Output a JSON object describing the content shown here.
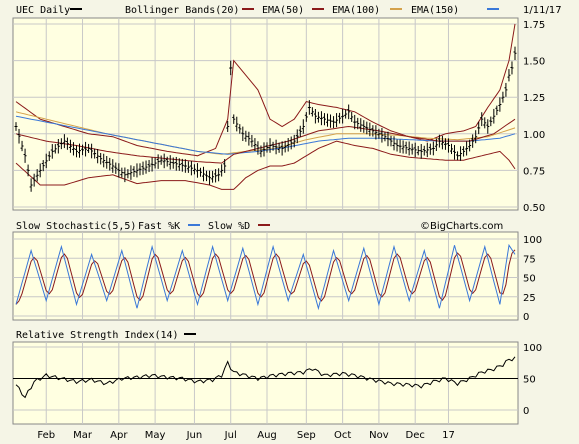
{
  "chart_data": [
    {
      "type": "line",
      "panel": "price",
      "ylim": [
        0.5,
        1.75
      ],
      "yticks": [
        "0.50",
        "0.75",
        "1.00",
        "1.25",
        "1.50",
        "1.75"
      ],
      "yticks_values": [
        0.5,
        0.75,
        1.0,
        1.25,
        1.5,
        1.75
      ],
      "date_label": "1/11/17",
      "legend": [
        {
          "label": "UEC Daily",
          "color": "#000000"
        },
        {
          "label": "Bollinger Bands(20)",
          "color": "#8b1a1a"
        },
        {
          "label": "EMA(50)",
          "color": "#8b1a1a"
        },
        {
          "label": "EMA(100)",
          "color": "#d4a24a"
        },
        {
          "label": "EMA(150)",
          "color": "#3a78d8"
        }
      ],
      "anchors": {
        "close": [
          [
            0,
            1.05
          ],
          [
            3,
            0.85
          ],
          [
            5,
            0.65
          ],
          [
            8,
            0.75
          ],
          [
            12,
            0.88
          ],
          [
            16,
            0.95
          ],
          [
            20,
            0.88
          ],
          [
            24,
            0.9
          ],
          [
            28,
            0.83
          ],
          [
            32,
            0.78
          ],
          [
            36,
            0.72
          ],
          [
            40,
            0.75
          ],
          [
            44,
            0.78
          ],
          [
            48,
            0.82
          ],
          [
            52,
            0.8
          ],
          [
            56,
            0.78
          ],
          [
            60,
            0.75
          ],
          [
            64,
            0.7
          ],
          [
            67,
            0.72
          ],
          [
            69,
            0.78
          ],
          [
            70,
            1.05
          ],
          [
            71,
            1.45
          ],
          [
            72,
            1.1
          ],
          [
            75,
            1.0
          ],
          [
            78,
            0.95
          ],
          [
            81,
            0.88
          ],
          [
            84,
            0.92
          ],
          [
            88,
            0.9
          ],
          [
            92,
            0.95
          ],
          [
            95,
            1.05
          ],
          [
            97,
            1.18
          ],
          [
            99,
            1.12
          ],
          [
            102,
            1.1
          ],
          [
            105,
            1.08
          ],
          [
            108,
            1.12
          ],
          [
            110,
            1.15
          ],
          [
            112,
            1.08
          ],
          [
            115,
            1.05
          ],
          [
            118,
            1.02
          ],
          [
            122,
            0.98
          ],
          [
            126,
            0.92
          ],
          [
            130,
            0.9
          ],
          [
            134,
            0.88
          ],
          [
            138,
            0.9
          ],
          [
            140,
            0.95
          ],
          [
            143,
            0.92
          ],
          [
            146,
            0.85
          ],
          [
            148,
            0.88
          ],
          [
            150,
            0.92
          ],
          [
            152,
            0.98
          ],
          [
            154,
            1.1
          ],
          [
            156,
            1.05
          ],
          [
            158,
            1.12
          ],
          [
            160,
            1.2
          ],
          [
            162,
            1.3
          ],
          [
            163,
            1.4
          ],
          [
            164,
            1.45
          ],
          [
            165,
            1.55
          ]
        ],
        "bb_upper": [
          [
            0,
            1.22
          ],
          [
            8,
            1.1
          ],
          [
            16,
            1.05
          ],
          [
            24,
            1.0
          ],
          [
            32,
            0.98
          ],
          [
            40,
            0.92
          ],
          [
            50,
            0.88
          ],
          [
            60,
            0.85
          ],
          [
            66,
            0.9
          ],
          [
            70,
            1.1
          ],
          [
            72,
            1.5
          ],
          [
            76,
            1.4
          ],
          [
            80,
            1.3
          ],
          [
            84,
            1.1
          ],
          [
            88,
            1.05
          ],
          [
            92,
            1.1
          ],
          [
            96,
            1.22
          ],
          [
            100,
            1.2
          ],
          [
            106,
            1.18
          ],
          [
            112,
            1.15
          ],
          [
            118,
            1.08
          ],
          [
            124,
            1.02
          ],
          [
            130,
            0.98
          ],
          [
            136,
            0.95
          ],
          [
            142,
            1.0
          ],
          [
            148,
            1.02
          ],
          [
            152,
            1.05
          ],
          [
            156,
            1.18
          ],
          [
            160,
            1.3
          ],
          [
            163,
            1.5
          ],
          [
            165,
            1.75
          ]
        ],
        "bb_lower": [
          [
            0,
            0.8
          ],
          [
            8,
            0.65
          ],
          [
            16,
            0.65
          ],
          [
            24,
            0.7
          ],
          [
            32,
            0.72
          ],
          [
            40,
            0.66
          ],
          [
            48,
            0.68
          ],
          [
            56,
            0.68
          ],
          [
            64,
            0.65
          ],
          [
            68,
            0.62
          ],
          [
            72,
            0.62
          ],
          [
            76,
            0.7
          ],
          [
            80,
            0.75
          ],
          [
            84,
            0.78
          ],
          [
            88,
            0.78
          ],
          [
            92,
            0.8
          ],
          [
            96,
            0.85
          ],
          [
            100,
            0.9
          ],
          [
            106,
            0.95
          ],
          [
            112,
            0.92
          ],
          [
            118,
            0.9
          ],
          [
            124,
            0.86
          ],
          [
            130,
            0.84
          ],
          [
            136,
            0.83
          ],
          [
            142,
            0.82
          ],
          [
            148,
            0.82
          ],
          [
            152,
            0.84
          ],
          [
            156,
            0.86
          ],
          [
            160,
            0.88
          ],
          [
            163,
            0.82
          ],
          [
            165,
            0.76
          ]
        ],
        "ema50": [
          [
            0,
            1.0
          ],
          [
            10,
            0.95
          ],
          [
            20,
            0.92
          ],
          [
            30,
            0.88
          ],
          [
            40,
            0.85
          ],
          [
            50,
            0.83
          ],
          [
            60,
            0.81
          ],
          [
            68,
            0.8
          ],
          [
            72,
            0.86
          ],
          [
            80,
            0.9
          ],
          [
            90,
            0.95
          ],
          [
            100,
            1.02
          ],
          [
            110,
            1.05
          ],
          [
            120,
            1.02
          ],
          [
            130,
            0.98
          ],
          [
            140,
            0.95
          ],
          [
            150,
            0.95
          ],
          [
            158,
            1.0
          ],
          [
            165,
            1.1
          ]
        ],
        "ema100": [
          [
            0,
            1.15
          ],
          [
            10,
            1.1
          ],
          [
            20,
            1.05
          ],
          [
            30,
            1.0
          ],
          [
            40,
            0.96
          ],
          [
            50,
            0.92
          ],
          [
            60,
            0.88
          ],
          [
            68,
            0.86
          ],
          [
            76,
            0.88
          ],
          [
            86,
            0.9
          ],
          [
            96,
            0.96
          ],
          [
            106,
            1.0
          ],
          [
            116,
            1.0
          ],
          [
            126,
            0.99
          ],
          [
            136,
            0.97
          ],
          [
            146,
            0.96
          ],
          [
            156,
            0.98
          ],
          [
            165,
            1.04
          ]
        ],
        "ema150": [
          [
            0,
            1.12
          ],
          [
            10,
            1.08
          ],
          [
            20,
            1.04
          ],
          [
            30,
            1.0
          ],
          [
            40,
            0.96
          ],
          [
            50,
            0.92
          ],
          [
            60,
            0.88
          ],
          [
            70,
            0.86
          ],
          [
            80,
            0.88
          ],
          [
            90,
            0.91
          ],
          [
            100,
            0.95
          ],
          [
            110,
            0.97
          ],
          [
            120,
            0.97
          ],
          [
            130,
            0.96
          ],
          [
            140,
            0.95
          ],
          [
            150,
            0.95
          ],
          [
            160,
            0.97
          ],
          [
            165,
            1.0
          ]
        ]
      }
    },
    {
      "type": "line",
      "panel": "stochastic",
      "title": "Slow Stochastic(5,5)",
      "legend": [
        {
          "label": "Fast %K",
          "color": "#3a78d8"
        },
        {
          "label": "Slow %D",
          "color": "#8b1a1a"
        }
      ],
      "ylim": [
        0,
        100
      ],
      "yticks": [
        "0",
        "25",
        "50",
        "75",
        "100"
      ],
      "yticks_values": [
        0,
        25,
        50,
        75,
        100
      ],
      "watermark": "©BigCharts.com",
      "cycles": [
        [
          0,
          15
        ],
        [
          5,
          85
        ],
        [
          10,
          20
        ],
        [
          15,
          90
        ],
        [
          20,
          15
        ],
        [
          25,
          80
        ],
        [
          30,
          20
        ],
        [
          35,
          85
        ],
        [
          40,
          10
        ],
        [
          45,
          90
        ],
        [
          50,
          20
        ],
        [
          55,
          85
        ],
        [
          60,
          15
        ],
        [
          65,
          90
        ],
        [
          70,
          20
        ],
        [
          75,
          88
        ],
        [
          80,
          15
        ],
        [
          85,
          90
        ],
        [
          90,
          20
        ],
        [
          95,
          80
        ],
        [
          100,
          10
        ],
        [
          105,
          85
        ],
        [
          110,
          20
        ],
        [
          115,
          88
        ],
        [
          120,
          15
        ],
        [
          125,
          90
        ],
        [
          130,
          20
        ],
        [
          135,
          85
        ],
        [
          140,
          10
        ],
        [
          145,
          92
        ],
        [
          150,
          20
        ],
        [
          155,
          90
        ],
        [
          160,
          15
        ],
        [
          163,
          92
        ],
        [
          165,
          80
        ]
      ]
    },
    {
      "type": "line",
      "panel": "rsi",
      "title": "Relative Strength Index(14)",
      "ylim": [
        0,
        100
      ],
      "yticks": [
        "0",
        "50",
        "100"
      ],
      "yticks_values": [
        0,
        50,
        100
      ],
      "ref_line": 50,
      "anchors": [
        [
          0,
          40
        ],
        [
          3,
          20
        ],
        [
          6,
          45
        ],
        [
          10,
          55
        ],
        [
          15,
          50
        ],
        [
          20,
          45
        ],
        [
          25,
          48
        ],
        [
          30,
          42
        ],
        [
          35,
          50
        ],
        [
          40,
          52
        ],
        [
          45,
          55
        ],
        [
          50,
          52
        ],
        [
          55,
          50
        ],
        [
          60,
          45
        ],
        [
          65,
          48
        ],
        [
          68,
          55
        ],
        [
          70,
          75
        ],
        [
          72,
          60
        ],
        [
          76,
          55
        ],
        [
          80,
          50
        ],
        [
          85,
          55
        ],
        [
          90,
          58
        ],
        [
          95,
          60
        ],
        [
          98,
          66
        ],
        [
          102,
          55
        ],
        [
          108,
          58
        ],
        [
          112,
          55
        ],
        [
          118,
          48
        ],
        [
          124,
          42
        ],
        [
          130,
          40
        ],
        [
          134,
          38
        ],
        [
          138,
          45
        ],
        [
          142,
          50
        ],
        [
          146,
          42
        ],
        [
          150,
          50
        ],
        [
          154,
          60
        ],
        [
          158,
          65
        ],
        [
          161,
          72
        ],
        [
          163,
          80
        ],
        [
          165,
          82
        ]
      ]
    },
    {
      "type": "line",
      "panel": "x-axis",
      "x_ticks": [
        "Feb",
        "Mar",
        "Apr",
        "May",
        "Jun",
        "Jul",
        "Aug",
        "Sep",
        "Oct",
        "Nov",
        "Dec",
        "17"
      ],
      "x_ticks_days": [
        10,
        22,
        34,
        46,
        59,
        71,
        83,
        96,
        108,
        120,
        132,
        143
      ],
      "n_days": 166
    }
  ]
}
